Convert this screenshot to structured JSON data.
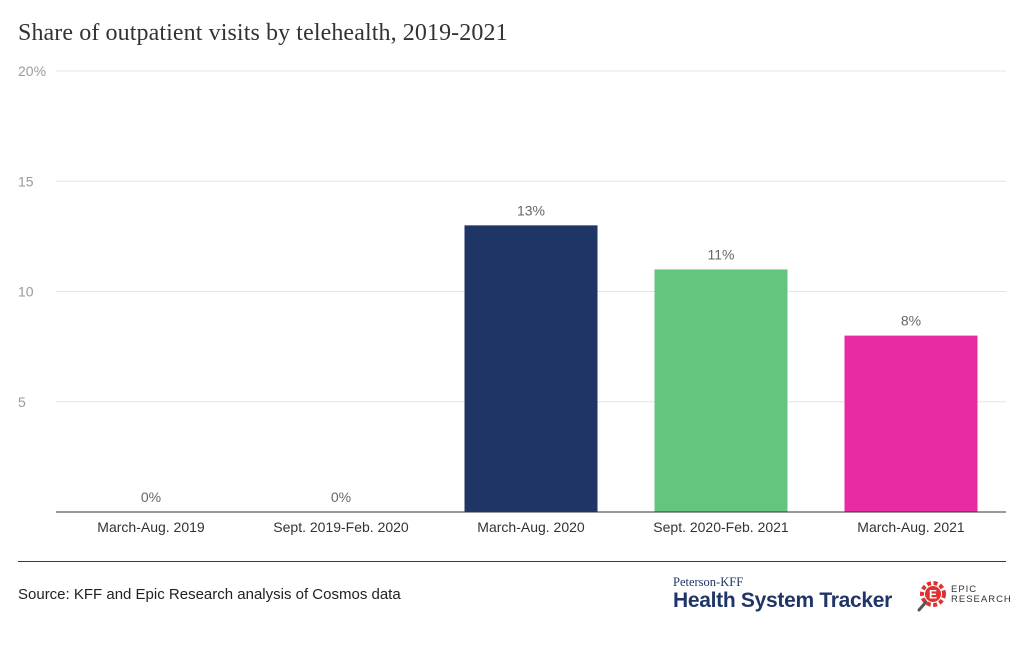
{
  "chart_data": {
    "type": "bar",
    "title": "Share of outpatient visits by telehealth, 2019-2021",
    "categories": [
      "March-Aug. 2019",
      "Sept. 2019-Feb. 2020",
      "March-Aug. 2020",
      "Sept. 2020-Feb. 2021",
      "March-Aug. 2021"
    ],
    "values": [
      0,
      0,
      13,
      11,
      8
    ],
    "value_labels": [
      "0%",
      "0%",
      "13%",
      "11%",
      "8%"
    ],
    "colors": [
      "#1f3566",
      "#1f3566",
      "#1f3566",
      "#64c67e",
      "#ea2aa0"
    ],
    "ylim": [
      0,
      20
    ],
    "yticks": [
      5,
      10,
      15,
      20
    ],
    "ytick_labels": [
      "5",
      "10",
      "15",
      "20%"
    ],
    "xlabel": "",
    "ylabel": "",
    "grid": true
  },
  "footer": {
    "source": "Source: KFF and Epic Research analysis of Cosmos data",
    "brand_small": "Peterson-KFF",
    "brand_big": "Health System Tracker",
    "epic_line1": "EPIC",
    "epic_line2": "RESEARCH"
  }
}
